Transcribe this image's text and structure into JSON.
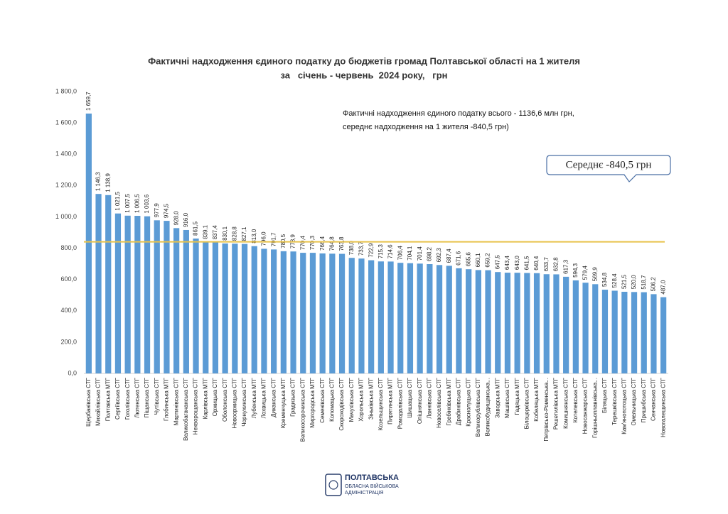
{
  "chart_data": {
    "type": "bar",
    "title": "Фактичні надходження єдиного податку до бюджетів громад Полтавської області на 1 жителя",
    "subtitle": "за   січень - червень  2024 року,   грн",
    "annotations": [
      "Фактичні надходження єдиного податку всього - 1136,6 млн грн,",
      "середнє надходження на 1 жителя -840,5 грн)"
    ],
    "callout": "Середнє -840,5 грн",
    "average": {
      "value": 840.5,
      "color": "#e8c24a"
    },
    "color": "#5b9bd5",
    "ylim": [
      0,
      1800
    ],
    "yticks": [
      {
        "value": 0,
        "label": "0,0"
      },
      {
        "value": 200,
        "label": "200,0"
      },
      {
        "value": 400,
        "label": "400,0"
      },
      {
        "value": 600,
        "label": "600,0"
      },
      {
        "value": 800,
        "label": "800,0"
      },
      {
        "value": 1000,
        "label": "1 000,0"
      },
      {
        "value": 1200,
        "label": "1 200,0"
      },
      {
        "value": 1400,
        "label": "1 400,0"
      },
      {
        "value": 1600,
        "label": "1 600,0"
      },
      {
        "value": 1800,
        "label": "1 800,0"
      }
    ],
    "categories": [
      "Щербанівська СТГ",
      "Михайлівська СТГ",
      "Полтавська МТГ",
      "Сергіївська СТГ",
      "Гоголівська СТГ",
      "Лютенська СТГ",
      "Піщанська СТГ",
      "Чутівська СТГ",
      "Глобинська МТГ",
      "Мартинівська СТГ",
      "Великобагачанська СТГ",
      "Нехворощанська СТГ",
      "Карлівська МТГ",
      "Оржицька СТГ",
      "Оболонська СТГ",
      "Новооржицька СТГ",
      "Чорнухинська СТГ",
      "Лубенська МТГ",
      "Лохвицька МТГ",
      "Диканська СТГ",
      "Кременчуцька МТГ",
      "Градизька СТГ",
      "Великосорочинська СТГ",
      "Миргородська МТГ",
      "Семенівська СТГ",
      "Коломацька СТГ",
      "Скороходівська СТГ",
      "Мачухівська СТГ",
      "Хорольська МТГ",
      "Зіньківська МТГ",
      "Козельщинська СТГ",
      "Пирятинська МТГ",
      "Ромодалівська СТГ",
      "Шишацька СТГ",
      "Опішнянська СТГ",
      "Ланнівська СТГ",
      "Новоселівська СТГ",
      "Гребінківська МТГ",
      "Драбинівська СТГ",
      "Краснолуцька СТГ",
      "Великорублівська СТГ",
      "Великобудищанська...",
      "Заводська МТГ",
      "Машівська СТГ",
      "Гадяцька МТГ",
      "Білоцерківська СТГ",
      "Кобеляцька МТГ",
      "Петрівсько-Роменська...",
      "Решетилівська МТГ",
      "Комишнянська СТГ",
      "Котелевська СТГ",
      "Новосанжарська СТГ",
      "Горішньоплавнівська...",
      "Біляцька СТГ",
      "Терешківська СТГ",
      "Кам'янопотоцька СТГ",
      "Омельницька СТГ",
      "Пришибська СТГ",
      "Сенчанська СТГ",
      "Новогалещинська СТГ"
    ],
    "values": [
      1659.7,
      1146.3,
      1138.9,
      1021.5,
      1007.5,
      1006.5,
      1003.6,
      977.9,
      974.5,
      928.0,
      916.0,
      861.5,
      839.1,
      837.4,
      830.1,
      828.8,
      827.1,
      813.0,
      796.0,
      791.7,
      780.5,
      778.9,
      770.4,
      770.3,
      766.4,
      764.8,
      763.8,
      738.0,
      733.7,
      722.9,
      715.3,
      714.6,
      706.4,
      704.1,
      701.4,
      698.2,
      692.3,
      687.4,
      671.6,
      665.6,
      660.1,
      659.2,
      647.5,
      643.4,
      643.0,
      641.5,
      640.4,
      633.7,
      632.8,
      617.3,
      594.3,
      579.4,
      569.9,
      534.8,
      528.4,
      521.5,
      520.0,
      518.7,
      506.2,
      487.0
    ],
    "value_labels": [
      "1 659,7",
      "1 146,3",
      "1 138,9",
      "1 021,5",
      "1 007,5",
      "1 006,5",
      "1 003,6",
      "977,9",
      "974,5",
      "928,0",
      "916,0",
      "861,5",
      "839,1",
      "837,4",
      "830,1",
      "828,8",
      "827,1",
      "813,0",
      "796,0",
      "791,7",
      "780,5",
      "778,9",
      "770,4",
      "770,3",
      "766,4",
      "764,8",
      "763,8",
      "738,0",
      "733,7",
      "722,9",
      "715,3",
      "714,6",
      "706,4",
      "704,1",
      "701,4",
      "698,2",
      "692,3",
      "687,4",
      "671,6",
      "665,6",
      "660,1",
      "659,2",
      "647,5",
      "643,4",
      "643,0",
      "641,5",
      "640,4",
      "633,7",
      "632,8",
      "617,3",
      "594,3",
      "579,4",
      "569,9",
      "534,8",
      "528,4",
      "521,5",
      "520,0",
      "518,7",
      "506,2",
      "487,0"
    ]
  },
  "logo": {
    "line1": "ПОЛТАВСЬКА",
    "line2": "ОБЛАСНА ВІЙСЬКОВА",
    "line3": "АДМІНІСТРАЦІЯ"
  }
}
